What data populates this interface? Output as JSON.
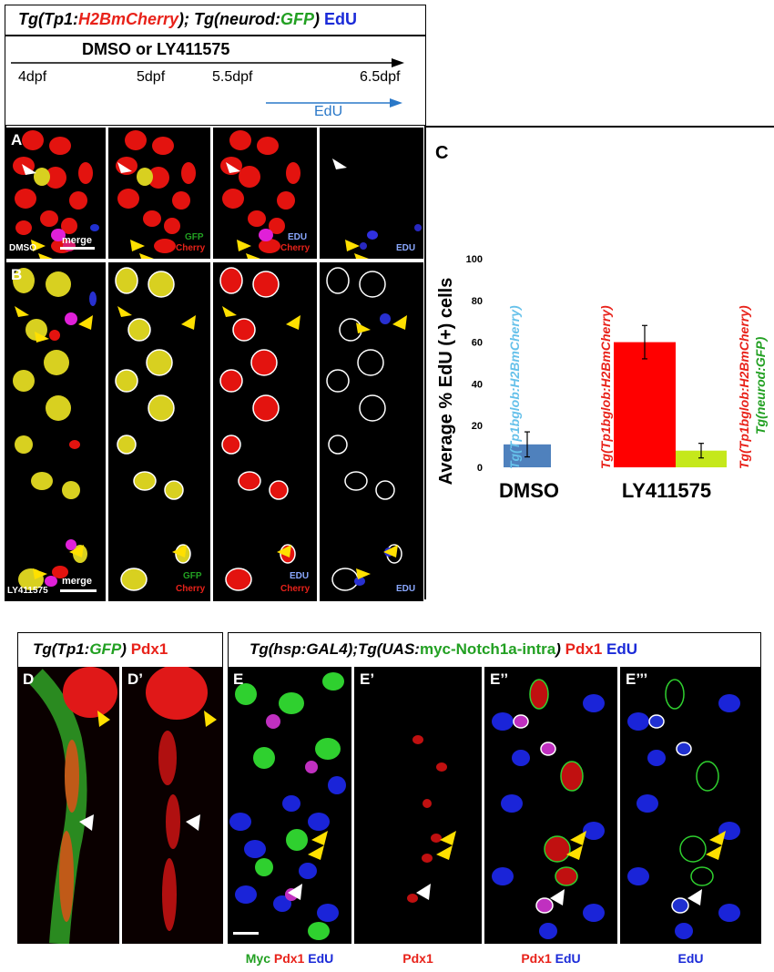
{
  "header": {
    "title_tg1": "Tg(Tp1:",
    "title_h2b": "H2BmCherry",
    "title_mid": "); Tg(",
    "title_neurod": "neurod",
    "title_colon": ":",
    "title_gfp": "GFP",
    "title_close": ")",
    "title_edu": "EdU",
    "treatment": "DMSO or LY411575",
    "t1": "4dpf",
    "t2": "5dpf",
    "t3": "5.5dpf",
    "t4": "6.5dpf",
    "edu_arrow": "EdU"
  },
  "panelA": {
    "label": "A",
    "dmso": "DMSO",
    "merge": "merge",
    "gfp": "GFP",
    "cherry": "Cherry",
    "edu": "EDU",
    "cherry2": "Cherry",
    "edu2": "EDU"
  },
  "panelB": {
    "label": "B",
    "ly": "LY411575",
    "merge": "merge",
    "gfp": "GFP",
    "cherry": "Cherry",
    "edu": "EDU",
    "cherry2": "Cherry",
    "edu2": "EDU"
  },
  "panelC": {
    "label": "C"
  },
  "chart_data": {
    "type": "bar",
    "ylabel": "Average % EdU (+) cells",
    "ylim": [
      0,
      100
    ],
    "yticks": [
      0,
      20,
      40,
      60,
      80,
      100
    ],
    "groups": [
      "DMSO",
      "LY411575"
    ],
    "bars": [
      {
        "group": "DMSO",
        "value": 11,
        "error": 6,
        "color": "#4f81bd",
        "label": "Tg(Tp1bglob:H2BmCherry)",
        "label_color": "#66c1ea"
      },
      {
        "group": "LY411575",
        "value": 60,
        "error": 8,
        "color": "#ff0000",
        "label": "Tg(Tp1bglob:H2BmCherry)",
        "label_color": "#e8221a"
      },
      {
        "group": "LY411575",
        "value": 8,
        "error": 3.5,
        "color": "#c5e81b",
        "label": "Tg(Tp1bglob:H2BmCherry)",
        "label2": "Tg(neurod:GFP)",
        "label_color": "#e8221a",
        "label2_color": "#22a022"
      }
    ]
  },
  "bottom": {
    "dtitle_tg": "Tg(Tp1:",
    "dtitle_gfp": "GFP",
    "dtitle_close": ")",
    "dtitle_pdx1": "Pdx1",
    "etitle_a": "Tg(hsp:GAL4);Tg(UAS:",
    "etitle_myc": "myc-Notch1a-intra",
    "etitle_close": ")",
    "etitle_pdx1": "Pdx1",
    "etitle_edu": "EdU",
    "D": "D",
    "Dp": "D’",
    "E": "E",
    "Ep": "E’",
    "Epp": "E’’",
    "Eppp": "E’’’",
    "lab_myc": "Myc",
    "lab_pdx1": "Pdx1",
    "lab_edu": "EdU",
    "lab2_pdx1": "Pdx1",
    "lab3_pdx1": "Pdx1",
    "lab3_edu": "EdU",
    "lab4_edu": "EdU"
  }
}
